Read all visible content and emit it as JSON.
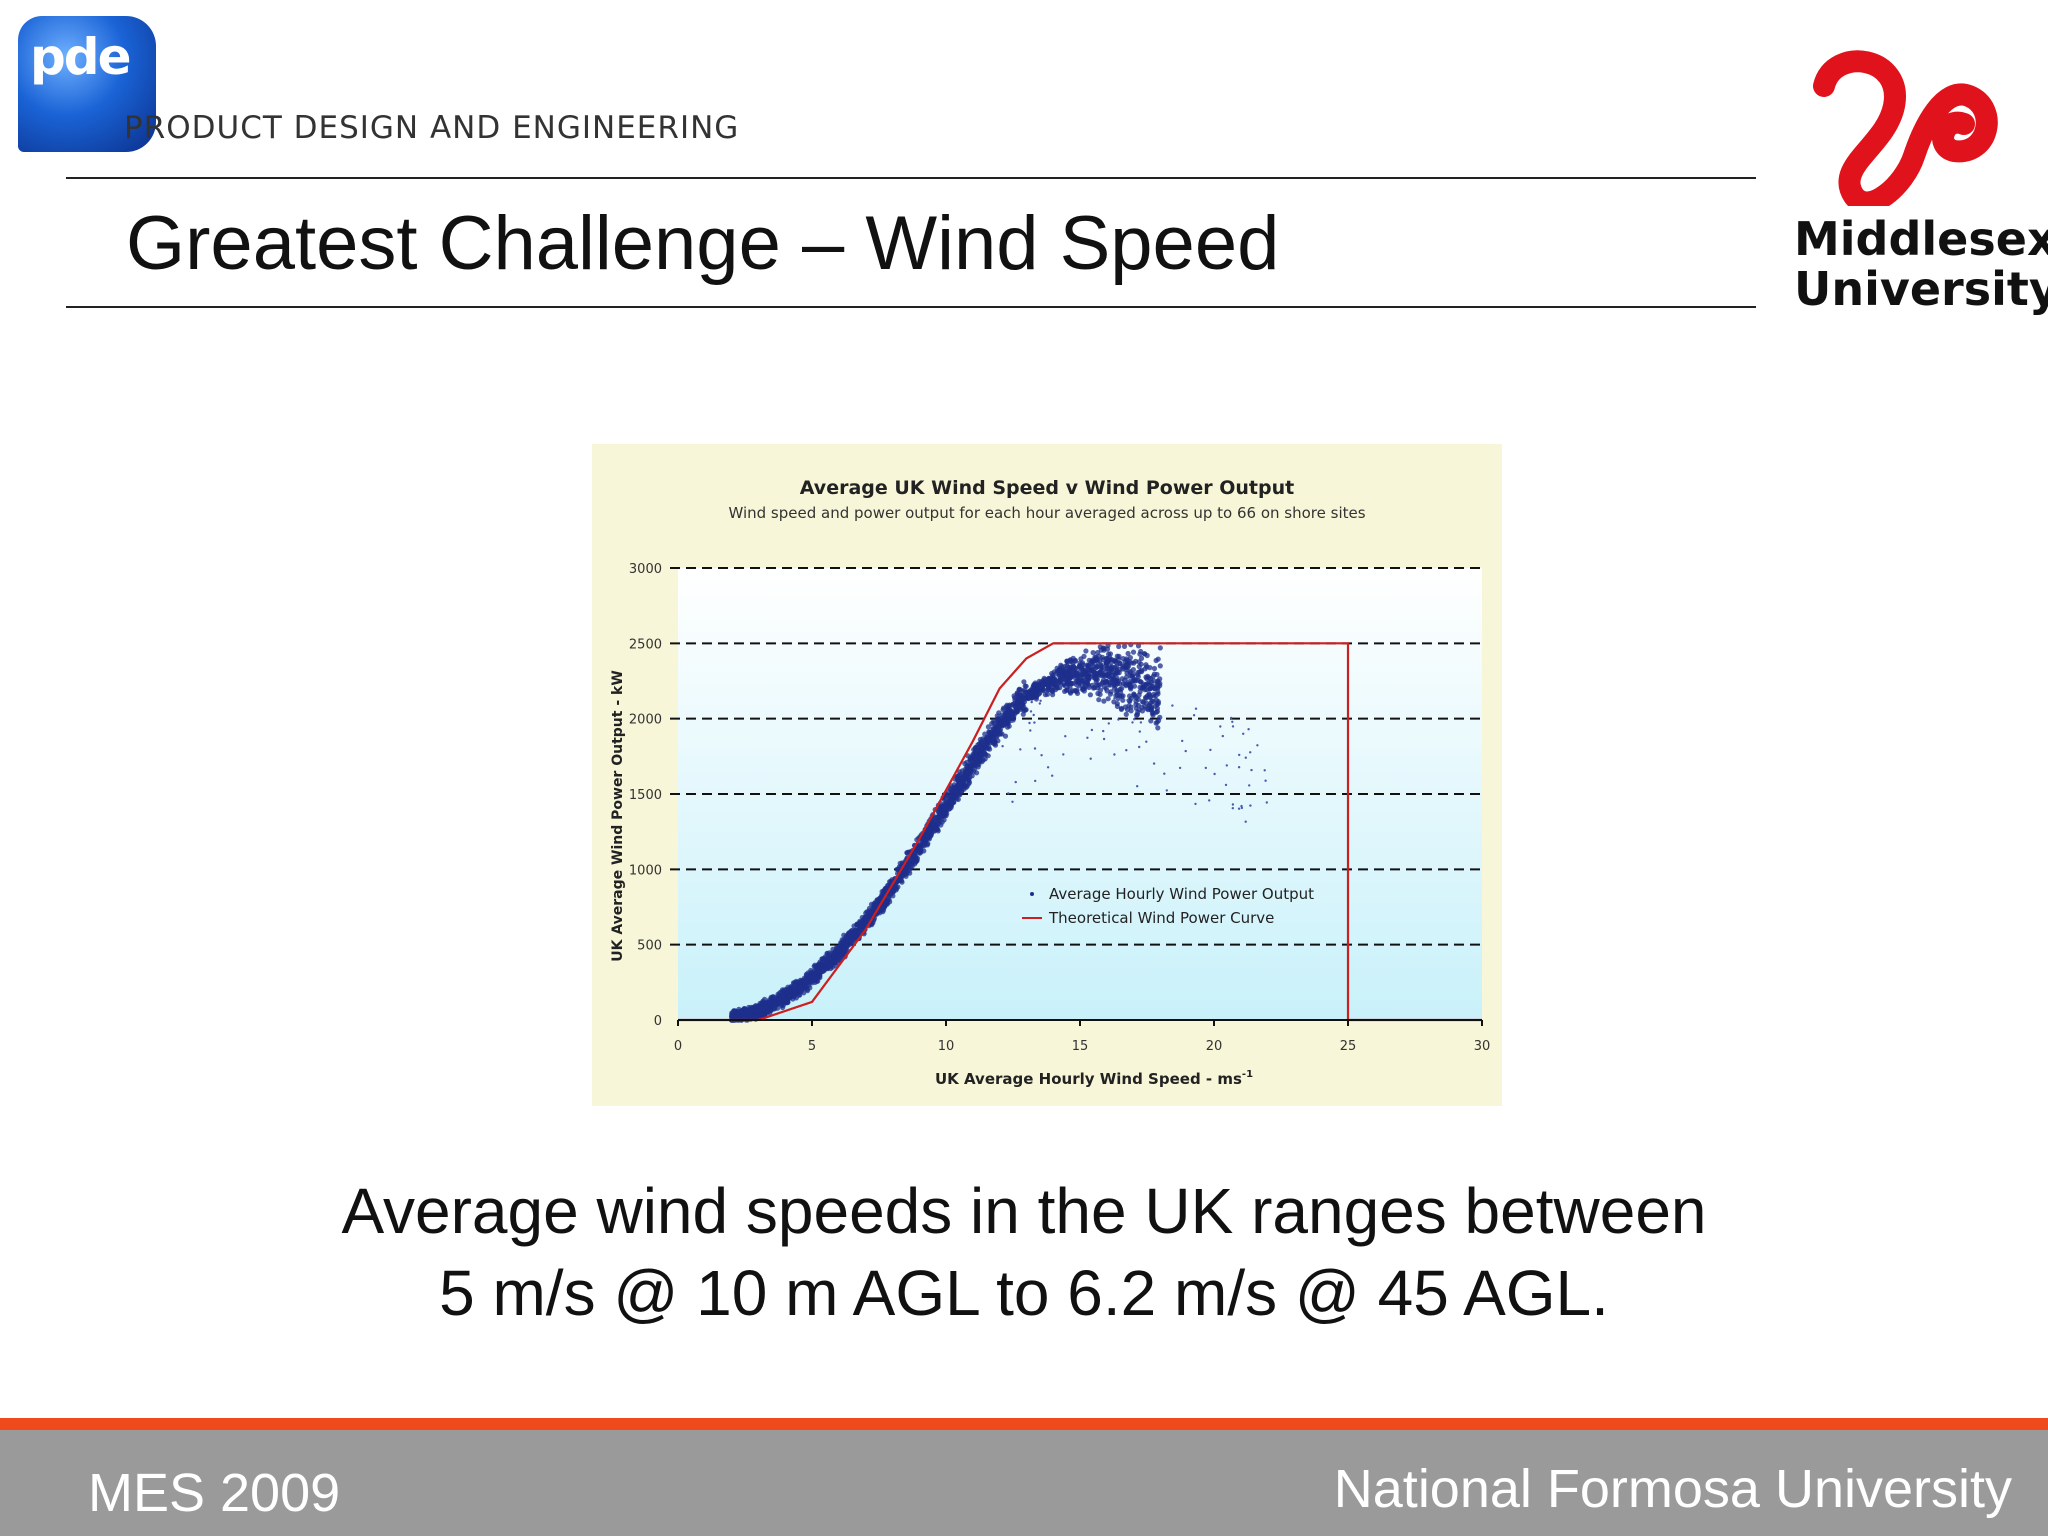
{
  "header": {
    "brand_text": "pde",
    "brand_tagline": "PRODUCT DESIGN AND ENGINEERING",
    "university_logo_text": [
      "Middlesex",
      "University"
    ]
  },
  "slide": {
    "title": "Greatest Challenge – Wind Speed",
    "caption_lines": [
      "Average wind speeds in the UK ranges between",
      "5 m/s @ 10 m AGL to 6.2 m/s @ 45 AGL."
    ]
  },
  "footer": {
    "left": "MES 2009",
    "right": "National Formosa University"
  },
  "colors": {
    "footer_stripe": "#ee4a1b",
    "footer_bar": "#9a9a9a",
    "scatter": "#1e2f8c",
    "theoretical_curve": "#cc1f1f",
    "chart_bg": "#f7f6d8"
  },
  "chart_data": {
    "type": "scatter",
    "title": "Average UK Wind Speed v Wind Power Output",
    "subtitle": "Wind speed and power output for each hour averaged across up to 66 on shore sites",
    "xlabel": "UK Average Hourly Wind Speed - ms",
    "xlabel_superscript": "-1",
    "ylabel": "UK Average Wind Power Output - kW",
    "xlim": [
      0,
      30
    ],
    "ylim": [
      0,
      3000
    ],
    "x_ticks": [
      0,
      5,
      10,
      15,
      20,
      25,
      30
    ],
    "y_ticks": [
      0,
      500,
      1000,
      1500,
      2000,
      2500,
      3000
    ],
    "grid": "dashed horizontal",
    "legend": {
      "placement": "center-right"
    },
    "series": [
      {
        "name": "Average Hourly Wind Power Output",
        "kind": "scatter",
        "x": [
          2.0,
          3.0,
          4.0,
          5.0,
          6.0,
          7.0,
          8.0,
          9.0,
          10.0,
          11.0,
          12.0,
          13.0,
          14.0,
          15.0,
          16.0,
          17.0,
          18.0,
          19.0,
          20.0,
          21.0,
          22.0
        ],
        "y": [
          10,
          60,
          150,
          280,
          450,
          650,
          880,
          1150,
          1420,
          1700,
          1950,
          2150,
          2250,
          2300,
          2300,
          2250,
          2200,
          2120,
          2050,
          2000,
          1950
        ]
      },
      {
        "name": "Theoretical Wind Power Curve",
        "kind": "line",
        "x": [
          0,
          3,
          5,
          7,
          9,
          11,
          12,
          13,
          14,
          25,
          25,
          30
        ],
        "y": [
          0,
          0,
          120,
          600,
          1200,
          1850,
          2200,
          2400,
          2500,
          2500,
          0,
          0
        ]
      }
    ]
  }
}
